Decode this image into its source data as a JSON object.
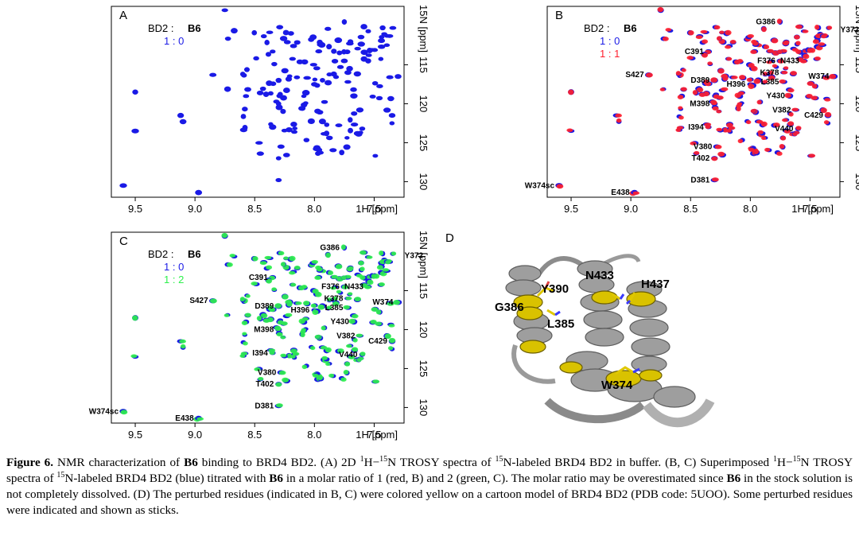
{
  "figure": {
    "nucleus_x": "1H [ppm]",
    "nucleus_y": "15N [ppm]",
    "x_ticks": [
      "9.5",
      "9.0",
      "8.5",
      "8.0",
      "7.5"
    ],
    "x_tick_values": [
      9.5,
      9.0,
      8.5,
      8.0,
      7.5
    ],
    "y_ticks": [
      "115",
      "120",
      "125",
      "130"
    ],
    "y_tick_values": [
      115,
      120,
      125,
      130
    ],
    "x_range": [
      9.7,
      7.25
    ],
    "y_range": [
      107.5,
      132
    ],
    "colors": {
      "blue": "#1a1ae6",
      "red": "#ff1f2e",
      "green": "#2ef04d",
      "black": "#000000"
    },
    "panels": [
      {
        "letter": "A",
        "legend_title": "BD2 : ",
        "legend_bold": "B6",
        "legend_entries": [
          {
            "text": "1 : 0",
            "color": "#1a1ae6"
          }
        ],
        "overlay": null,
        "labeled": false
      },
      {
        "letter": "B",
        "legend_title": "BD2 : ",
        "legend_bold": "B6",
        "legend_entries": [
          {
            "text": "1 : 0",
            "color": "#1a1ae6"
          },
          {
            "text": "1 : 1",
            "color": "#ff1f2e"
          }
        ],
        "overlay": "#ff1f2e",
        "labeled": true
      },
      {
        "letter": "C",
        "legend_title": "BD2 : ",
        "legend_bold": "B6",
        "legend_entries": [
          {
            "text": "1 : 0",
            "color": "#1a1ae6"
          },
          {
            "text": "1 : 2",
            "color": "#2ef04d"
          }
        ],
        "overlay": "#2ef04d",
        "labeled": true
      }
    ],
    "residues": [
      {
        "label": "G386",
        "x": 7.75,
        "y": 109.5
      },
      {
        "label": "Y372",
        "x": 7.05,
        "y": 110.5
      },
      {
        "label": "C391",
        "x": 8.35,
        "y": 113.3
      },
      {
        "label": "F376",
        "x": 7.75,
        "y": 114.5
      },
      {
        "label": "N433",
        "x": 7.55,
        "y": 114.5
      },
      {
        "label": "K378",
        "x": 7.72,
        "y": 116.0
      },
      {
        "label": "W374",
        "x": 7.3,
        "y": 116.5
      },
      {
        "label": "S427",
        "x": 8.85,
        "y": 116.3
      },
      {
        "label": "D389",
        "x": 8.3,
        "y": 117.0
      },
      {
        "label": "L385",
        "x": 7.72,
        "y": 117.2
      },
      {
        "label": "H396",
        "x": 8.0,
        "y": 117.5
      },
      {
        "label": "Y430",
        "x": 7.67,
        "y": 119.0
      },
      {
        "label": "M398",
        "x": 8.3,
        "y": 120.0
      },
      {
        "label": "V382",
        "x": 7.62,
        "y": 120.8
      },
      {
        "label": "C429",
        "x": 7.35,
        "y": 121.5
      },
      {
        "label": "I394",
        "x": 8.35,
        "y": 123.0
      },
      {
        "label": "V440",
        "x": 7.6,
        "y": 123.2
      },
      {
        "label": "V380",
        "x": 8.28,
        "y": 125.5
      },
      {
        "label": "T402",
        "x": 8.3,
        "y": 127.0
      },
      {
        "label": "D381",
        "x": 8.3,
        "y": 129.8
      },
      {
        "label": "W374sc",
        "x": 9.6,
        "y": 130.5
      },
      {
        "label": "E438",
        "x": 8.97,
        "y": 131.4
      }
    ],
    "structure": {
      "letter": "D",
      "labels": [
        "N433",
        "H437",
        "Y390",
        "G386",
        "L385",
        "W374"
      ]
    }
  },
  "caption": {
    "figure_label": "Figure 6.",
    "s1_a": " NMR characterization of ",
    "s1_b": "B6",
    "s1_c": " binding to BRD4 BD2. (A) 2D ",
    "s1_d": "H−",
    "s1_e": "N TROSY spectra of ",
    "s1_f": "N-labeled BRD4 BD2 in buffer. (B, C) Superimposed ",
    "s1_g": "H−",
    "s1_h": "N TROSY spectra of ",
    "s1_i": "N-labeled BRD4 BD2 (blue) titrated with ",
    "s1_j": "B6",
    "s1_k": " in a molar ratio of 1 (red, B) and 2 (green, C). The molar ratio may be overestimated since ",
    "s1_l": "B6",
    "s1_m": " in the stock solution is not completely dissolved. (D) The perturbed residues (indicated in B, C) were colored yellow on a cartoon model of BRD4 BD2 (PDB code: 5UOO). Some perturbed residues were indicated and shown as sticks.",
    "sup1": "1",
    "sup15": "15"
  }
}
